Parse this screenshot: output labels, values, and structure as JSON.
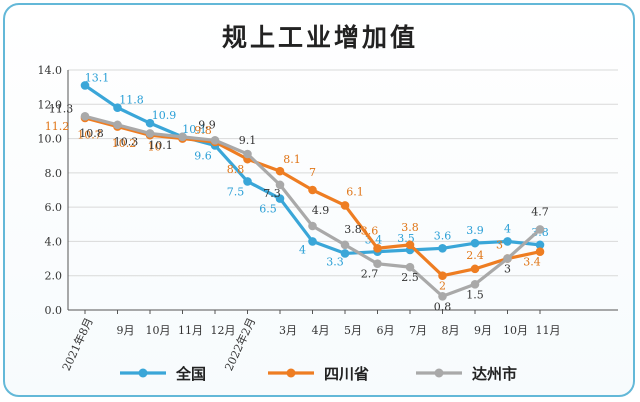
{
  "chart_data": {
    "type": "line",
    "title": "规上工业增加值",
    "categories": [
      "2021年8月",
      "9月",
      "10月",
      "11月",
      "12月",
      "2022年2月",
      "3月",
      "4月",
      "5月",
      "6月",
      "7月",
      "8月",
      "9月",
      "10月",
      "11月"
    ],
    "ylim": [
      0,
      14
    ],
    "yticks": [
      "0.0",
      "2.0",
      "4.0",
      "6.0",
      "8.0",
      "10.0",
      "12.0",
      "14.0"
    ],
    "grid": true,
    "legend_position": "bottom",
    "series": [
      {
        "name": "全国",
        "color": "#3aa6d8",
        "values": [
          13.1,
          11.8,
          10.9,
          10.1,
          9.6,
          7.5,
          6.5,
          4,
          3.3,
          3.4,
          3.5,
          3.6,
          3.9,
          4,
          3.8
        ],
        "labels": [
          "13.1",
          "11.8",
          "10.9",
          "10.1",
          "9.6",
          "7.5",
          "6.5",
          "4",
          "3.3",
          "3.4",
          "3.5",
          "3.6",
          "3.9",
          "4",
          "3.8"
        ]
      },
      {
        "name": "四川省",
        "color": "#ee7d22",
        "values": [
          11.2,
          10.7,
          10.2,
          10,
          9.8,
          8.8,
          8.1,
          7,
          6.1,
          3.6,
          3.8,
          2,
          2.4,
          3,
          3.4
        ],
        "labels": [
          "11.2",
          "10.7",
          "10.2",
          "10",
          "9.8",
          "8.8",
          "8.1",
          "7",
          "6.1",
          "3.6",
          "3.8",
          "2",
          "2.4",
          "3",
          "3.4"
        ]
      },
      {
        "name": "达州市",
        "color": "#a9a9a9",
        "values": [
          11.3,
          10.8,
          10.3,
          10.1,
          9.9,
          9.1,
          7.3,
          4.9,
          3.8,
          2.7,
          2.5,
          0.8,
          1.5,
          3,
          4.7
        ],
        "labels": [
          "11.3",
          "10.8",
          "10.3",
          "10.1",
          "9.9",
          "9.1",
          "7.3",
          "4.9",
          "3.8",
          "2.7",
          "2.5",
          "0.8",
          "1.5",
          "3",
          "4.7"
        ]
      }
    ]
  }
}
